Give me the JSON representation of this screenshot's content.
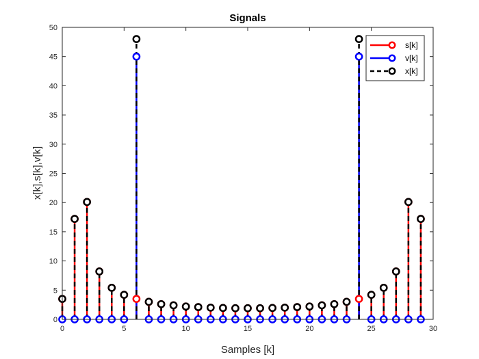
{
  "chart_data": {
    "type": "stem",
    "title": "Signals",
    "xlabel": "Samples [k]",
    "ylabel": "x[k],s[k],v[k]",
    "xlim": [
      0,
      30
    ],
    "ylim": [
      0,
      50
    ],
    "xticks": [
      0,
      5,
      10,
      15,
      20,
      25,
      30
    ],
    "yticks": [
      0,
      5,
      10,
      15,
      20,
      25,
      30,
      35,
      40,
      45,
      50
    ],
    "grid": false,
    "legend_position": "top-right",
    "x": [
      0,
      1,
      2,
      3,
      4,
      5,
      6,
      7,
      8,
      9,
      10,
      11,
      12,
      13,
      14,
      15,
      16,
      17,
      18,
      19,
      20,
      21,
      22,
      23,
      24,
      25,
      26,
      27,
      28,
      29
    ],
    "series": [
      {
        "name": "s[k]",
        "color": "#ff0000",
        "line_style": "solid",
        "values": [
          3.5,
          17.2,
          20.1,
          8.2,
          5.4,
          4.2,
          3.5,
          3.0,
          2.6,
          2.4,
          2.2,
          2.1,
          2.0,
          1.95,
          1.9,
          1.9,
          1.9,
          1.95,
          2.0,
          2.1,
          2.2,
          2.4,
          2.6,
          3.0,
          3.5,
          4.2,
          5.4,
          8.2,
          20.1,
          17.2
        ]
      },
      {
        "name": "v[k]",
        "color": "#0000ff",
        "line_style": "solid",
        "values": [
          0,
          0,
          0,
          0,
          0,
          0,
          45,
          0,
          0,
          0,
          0,
          0,
          0,
          0,
          0,
          0,
          0,
          0,
          0,
          0,
          0,
          0,
          0,
          0,
          45,
          0,
          0,
          0,
          0,
          0
        ]
      },
      {
        "name": "x[k]",
        "color": "#000000",
        "line_style": "dashed",
        "values": [
          3.5,
          17.2,
          20.1,
          8.2,
          5.4,
          4.2,
          48,
          3.0,
          2.6,
          2.4,
          2.2,
          2.1,
          2.0,
          1.95,
          1.9,
          1.9,
          1.9,
          1.95,
          2.0,
          2.1,
          2.2,
          2.4,
          2.6,
          3.0,
          48,
          4.2,
          5.4,
          8.2,
          20.1,
          17.2
        ]
      }
    ]
  }
}
